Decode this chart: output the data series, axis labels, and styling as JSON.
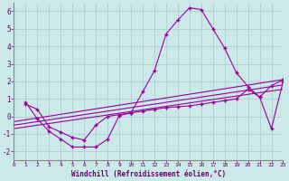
{
  "xlabel": "Windchill (Refroidissement éolien,°C)",
  "xlim": [
    0,
    23
  ],
  "ylim": [
    -2.5,
    6.5
  ],
  "yticks": [
    -2,
    -1,
    0,
    1,
    2,
    3,
    4,
    5,
    6
  ],
  "xticks": [
    0,
    1,
    2,
    3,
    4,
    5,
    6,
    7,
    8,
    9,
    10,
    11,
    12,
    13,
    14,
    15,
    16,
    17,
    18,
    19,
    20,
    21,
    22,
    23
  ],
  "bg_color": "#cce9e9",
  "line_color": "#990099",
  "series1_x": [
    1,
    2,
    3,
    4,
    5,
    6,
    7,
    8,
    9,
    10,
    11,
    12,
    13,
    14,
    15,
    16,
    17,
    18,
    19,
    20,
    21,
    22,
    23
  ],
  "series1_y": [
    0.8,
    -0.15,
    -0.85,
    -1.3,
    -1.75,
    -1.75,
    -1.75,
    -1.3,
    0.05,
    0.2,
    1.4,
    2.6,
    4.7,
    5.5,
    6.2,
    6.1,
    5.0,
    3.9,
    2.5,
    1.7,
    1.1,
    -0.7,
    2.0
  ],
  "series2_x": [
    1,
    2,
    3,
    4,
    5,
    6,
    7,
    8,
    9,
    10,
    11,
    12,
    13,
    14,
    15,
    16,
    17,
    18,
    19,
    20,
    21,
    22,
    23
  ],
  "series2_y": [
    0.7,
    0.4,
    -0.6,
    -0.9,
    -1.2,
    -1.35,
    -0.5,
    0.0,
    0.1,
    0.2,
    0.3,
    0.4,
    0.5,
    0.55,
    0.6,
    0.7,
    0.8,
    0.9,
    1.0,
    1.55,
    1.1,
    1.75,
    2.1
  ],
  "series3_x": [
    0,
    23
  ],
  "series3_y": [
    -0.5,
    1.8
  ],
  "series4_x": [
    0,
    23
  ],
  "series4_y": [
    -0.7,
    1.55
  ],
  "series5_x": [
    0,
    23
  ],
  "series5_y": [
    -0.3,
    2.1
  ]
}
